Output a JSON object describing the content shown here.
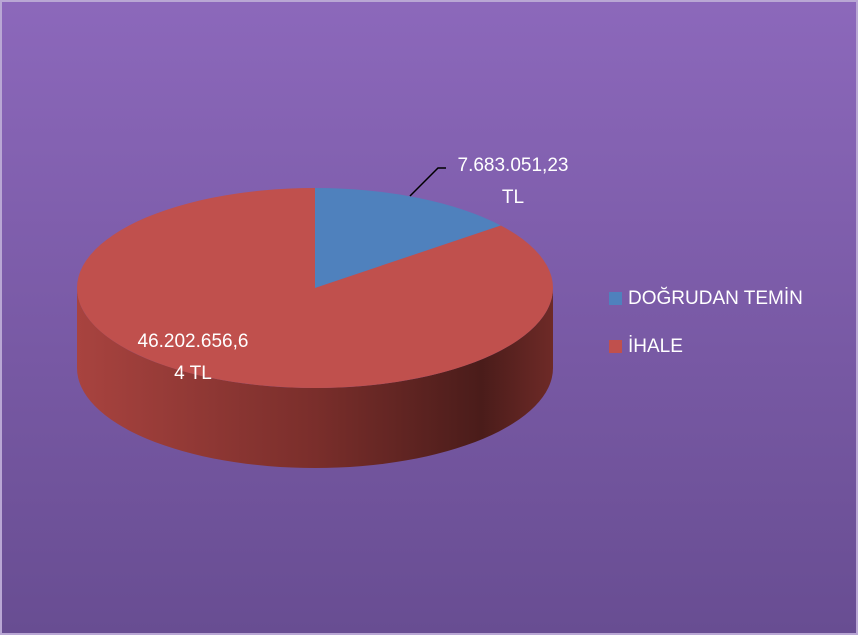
{
  "chart_data": {
    "type": "pie",
    "categories": [
      "DOĞRUDAN TEMİN",
      "İHALE"
    ],
    "values": [
      7683051.23,
      46202656.64
    ],
    "value_labels": [
      "7.683.051,23 TL",
      "46.202.656,64 TL"
    ],
    "colors": [
      "#4f81bd",
      "#c0504d"
    ],
    "legend": "right"
  }
}
